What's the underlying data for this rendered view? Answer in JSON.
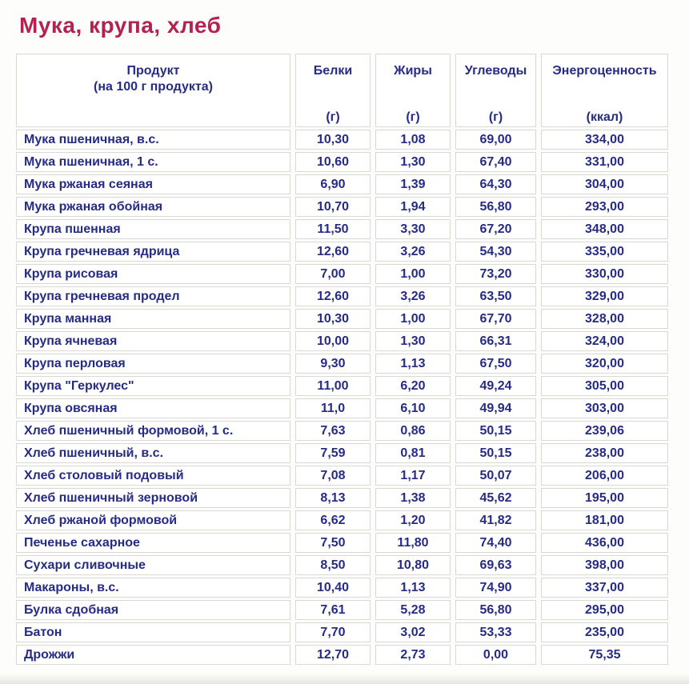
{
  "page": {
    "title": "Мука, крупа, хлеб"
  },
  "colors": {
    "title_accent": "#b22253",
    "table_text": "#262b84",
    "cell_border": "#d9d9d3",
    "background": "#fdfdfb",
    "cell_background": "#ffffff"
  },
  "table": {
    "header": {
      "product": {
        "line1": "Продукт",
        "line2": "(на 100 г продукта)"
      },
      "columns": [
        {
          "label": "Белки",
          "unit": "(г)"
        },
        {
          "label": "Жиры",
          "unit": "(г)"
        },
        {
          "label": "Углеводы",
          "unit": "(г)"
        },
        {
          "label": "Энергоценность",
          "unit": "(ккал)"
        }
      ]
    },
    "rows": [
      [
        "Мука пшеничная, в.с.",
        "10,30",
        "1,08",
        "69,00",
        "334,00"
      ],
      [
        "Мука пшеничная, 1 с.",
        "10,60",
        "1,30",
        "67,40",
        "331,00"
      ],
      [
        "Мука ржаная сеяная",
        "6,90",
        "1,39",
        "64,30",
        "304,00"
      ],
      [
        "Мука ржаная обойная",
        "10,70",
        "1,94",
        "56,80",
        "293,00"
      ],
      [
        "Крупа пшенная",
        "11,50",
        "3,30",
        "67,20",
        "348,00"
      ],
      [
        "Крупа гречневая ядрица",
        "12,60",
        "3,26",
        "54,30",
        "335,00"
      ],
      [
        "Крупа рисовая",
        "7,00",
        "1,00",
        "73,20",
        "330,00"
      ],
      [
        "Крупа гречневая продел",
        "12,60",
        "3,26",
        "63,50",
        "329,00"
      ],
      [
        "Крупа манная",
        "10,30",
        "1,00",
        "67,70",
        "328,00"
      ],
      [
        "Крупа ячневая",
        "10,00",
        "1,30",
        "66,31",
        "324,00"
      ],
      [
        "Крупа перловая",
        "9,30",
        "1,13",
        "67,50",
        "320,00"
      ],
      [
        "Крупа \"Геркулес\"",
        "11,00",
        "6,20",
        "49,24",
        "305,00"
      ],
      [
        "Крупа овсяная",
        "11,0",
        "6,10",
        "49,94",
        "303,00"
      ],
      [
        "Хлеб пшеничный формовой, 1 с.",
        "7,63",
        "0,86",
        "50,15",
        "239,06"
      ],
      [
        "Хлеб пшеничный, в.с.",
        "7,59",
        "0,81",
        "50,15",
        "238,00"
      ],
      [
        "Хлеб столовый подовый",
        "7,08",
        "1,17",
        "50,07",
        "206,00"
      ],
      [
        "Хлеб пшеничный зерновой",
        "8,13",
        "1,38",
        "45,62",
        "195,00"
      ],
      [
        "Хлеб ржаной формовой",
        "6,62",
        "1,20",
        "41,82",
        "181,00"
      ],
      [
        "Печенье сахарное",
        "7,50",
        "11,80",
        "74,40",
        "436,00"
      ],
      [
        "Сухари сливочные",
        "8,50",
        "10,80",
        "69,63",
        "398,00"
      ],
      [
        "Макароны, в.с.",
        "10,40",
        "1,13",
        "74,90",
        "337,00"
      ],
      [
        "Булка сдобная",
        "7,61",
        "5,28",
        "56,80",
        "295,00"
      ],
      [
        "Батон",
        "7,70",
        "3,02",
        "53,33",
        "235,00"
      ],
      [
        "Дрожжи",
        "12,70",
        "2,73",
        "0,00",
        "75,35"
      ]
    ]
  }
}
